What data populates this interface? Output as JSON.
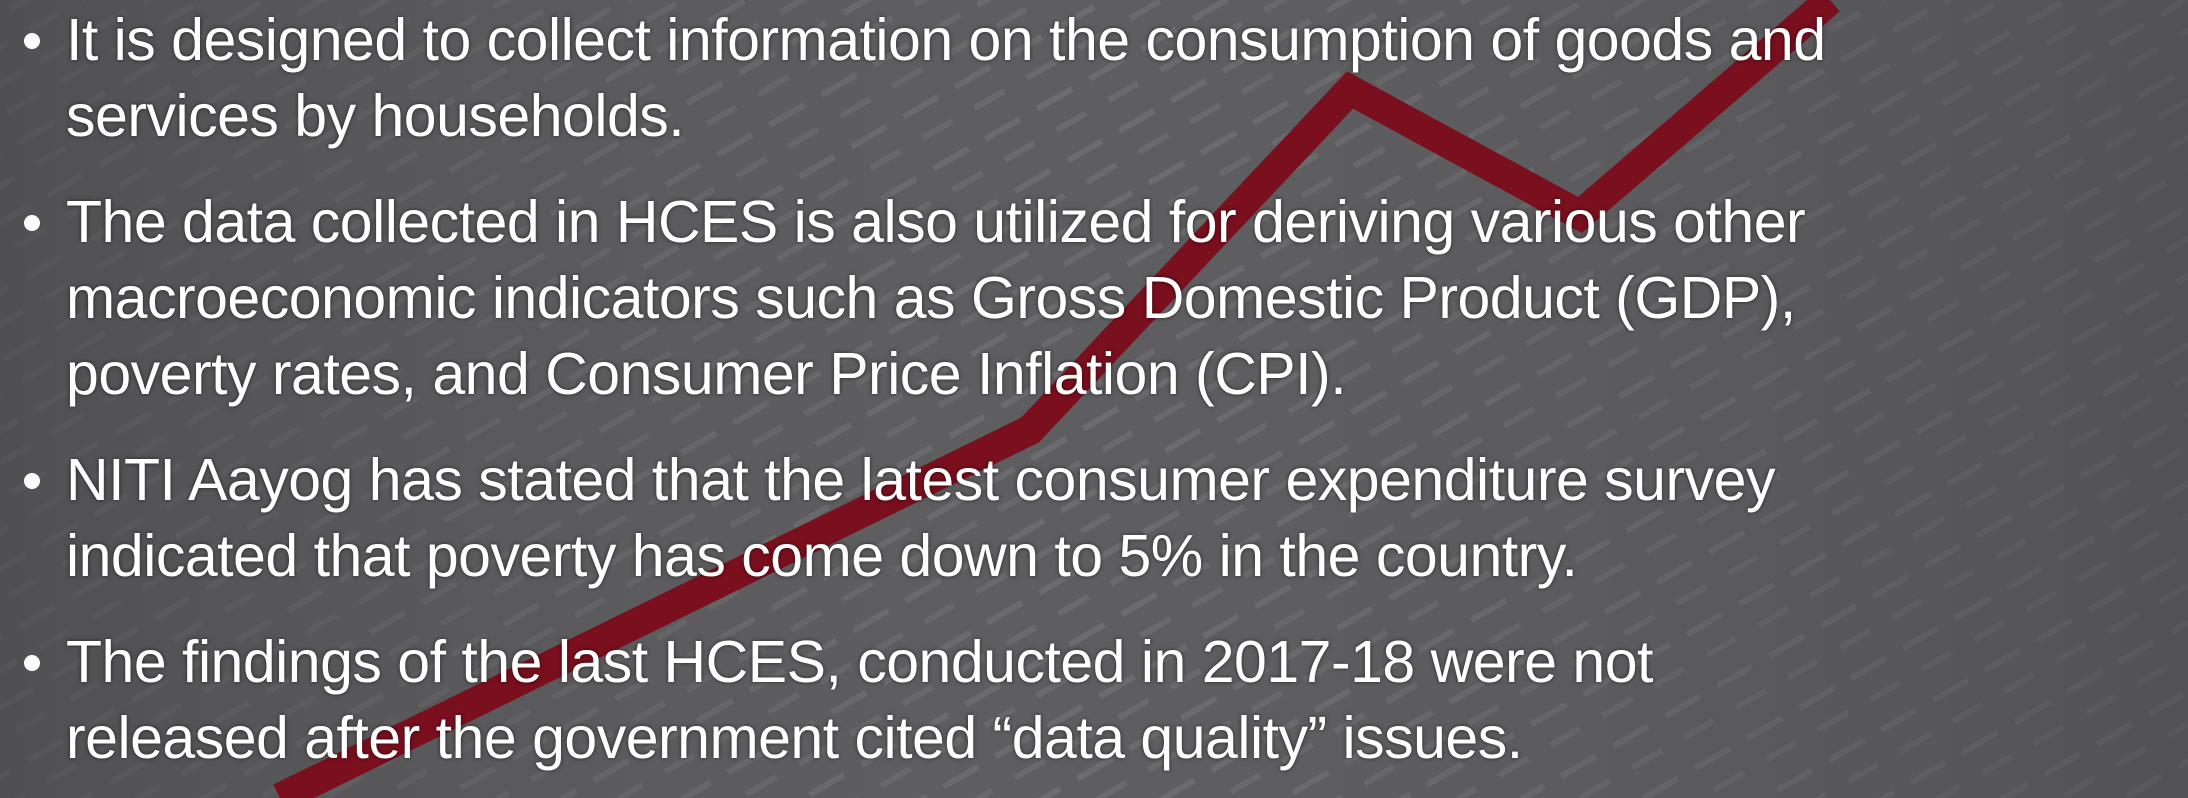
{
  "bullets": [
    {
      "lines": [
        "It is designed to collect information on the consumption of goods and",
        "services by households."
      ]
    },
    {
      "lines": [
        "The data collected in HCES is also utilized for deriving various other",
        "macroeconomic indicators such as Gross Domestic Product (GDP),",
        "poverty rates, and Consumer Price Inflation (CPI)."
      ]
    },
    {
      "lines": [
        "NITI Aayog has stated that the latest consumer expenditure survey",
        "indicated that poverty has come down to 5% in the country."
      ]
    },
    {
      "lines": [
        "The findings of the last HCES, conducted in 2017-18 were not",
        "released after the government cited “data quality” issues."
      ]
    }
  ]
}
